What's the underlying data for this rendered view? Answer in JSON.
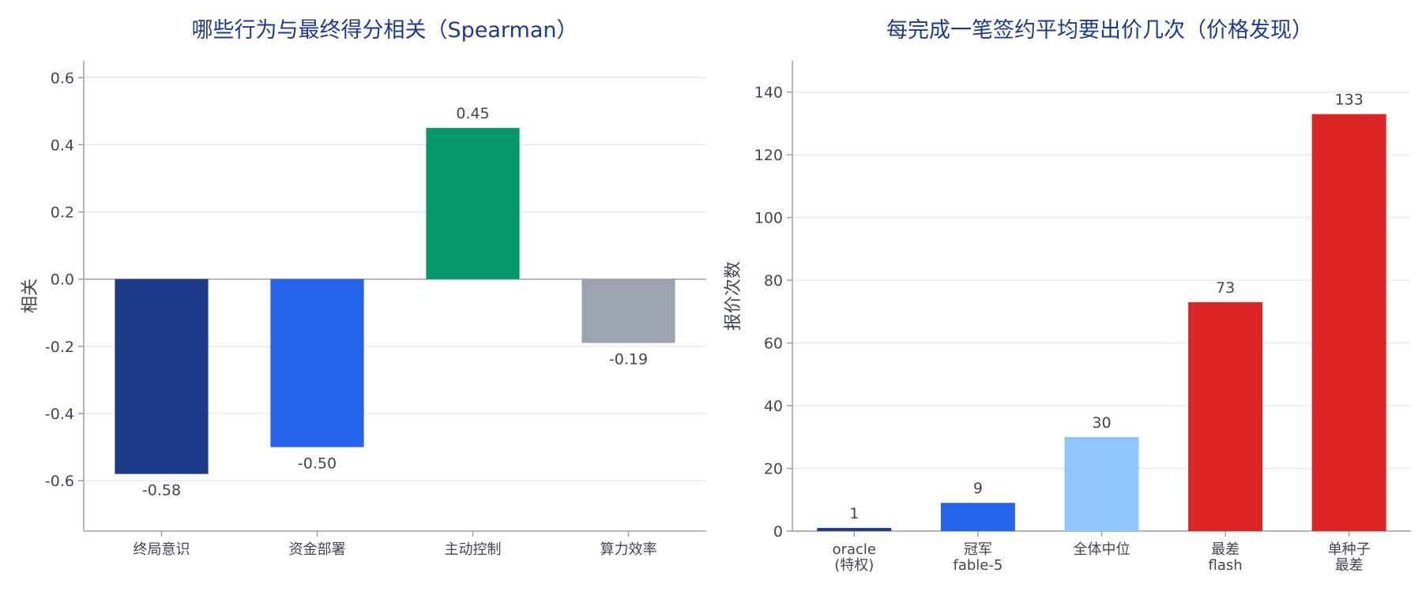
{
  "chart_data": [
    {
      "type": "bar",
      "title": "哪些行为与最终得分相关（Spearman）",
      "ylabel": "相关",
      "xlabel": "",
      "ylim": [
        -0.75,
        0.65
      ],
      "yticks": [
        0.6,
        0.4,
        0.2,
        0.0,
        -0.2,
        -0.4,
        -0.6
      ],
      "ytick_labels": [
        "0.6",
        "0.4",
        "0.2",
        "0.0",
        "-0.2",
        "-0.4",
        "-0.6"
      ],
      "grid": true,
      "categories": [
        [
          "终局意识"
        ],
        [
          "资金部署"
        ],
        [
          "主动控制"
        ],
        [
          "算力效率"
        ]
      ],
      "values": [
        -0.58,
        -0.5,
        0.45,
        -0.19
      ],
      "value_labels": [
        "-0.58",
        "-0.50",
        "0.45",
        "-0.19"
      ],
      "colors": [
        "#1e3a8a",
        "#2563eb",
        "#059669",
        "#9ca3af"
      ]
    },
    {
      "type": "bar",
      "title": "每完成一笔签约平均要出价几次（价格发现）",
      "ylabel": "报价次数",
      "xlabel": "",
      "ylim": [
        0,
        150
      ],
      "yticks": [
        0,
        20,
        40,
        60,
        80,
        100,
        120,
        140
      ],
      "ytick_labels": [
        "0",
        "20",
        "40",
        "60",
        "80",
        "100",
        "120",
        "140"
      ],
      "grid": true,
      "categories": [
        [
          "oracle",
          "(特权)"
        ],
        [
          "冠军",
          "fable-5"
        ],
        [
          "全体中位"
        ],
        [
          "最差",
          "flash"
        ],
        [
          "单种子",
          "最差"
        ]
      ],
      "values": [
        1,
        9,
        30,
        73,
        133
      ],
      "value_labels": [
        "1",
        "9",
        "30",
        "73",
        "133"
      ],
      "colors": [
        "#1e3a8a",
        "#2563eb",
        "#93c5fd",
        "#dc2626",
        "#dc2626"
      ]
    }
  ]
}
